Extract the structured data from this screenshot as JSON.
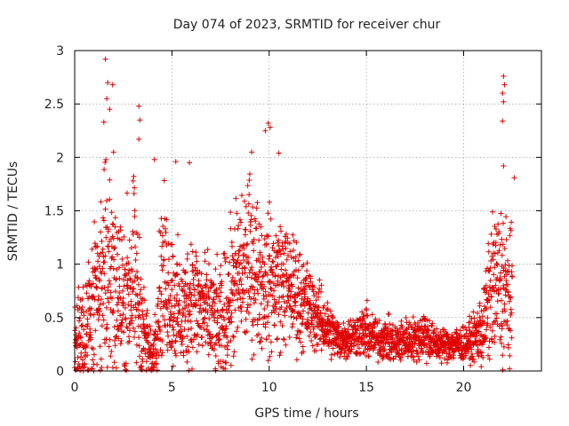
{
  "chart_data": {
    "type": "scatter",
    "title": "Day 074 of 2023, SRMTID for receiver chur",
    "xlabel": "GPS time / hours",
    "ylabel": "SRMTID / TECUs",
    "xlim": [
      0,
      24
    ],
    "ylim": [
      0,
      3
    ],
    "x_ticks": [
      0,
      5,
      10,
      15,
      20
    ],
    "y_ticks": [
      0,
      0.5,
      1,
      1.5,
      2,
      2.5,
      3
    ],
    "x_tick_labels": [
      "0",
      "5",
      "10",
      "15",
      "20"
    ],
    "y_tick_labels": [
      "0",
      "0.5",
      "1",
      "1.5",
      "2",
      "2.5",
      "3"
    ],
    "grid": true,
    "marker": "plus",
    "color": "#e00000",
    "series": [
      {
        "name": "SRMTID",
        "envelope": {
          "hours": [
            0.0,
            0.5,
            1.0,
            1.5,
            2.0,
            2.5,
            3.0,
            3.5,
            4.0,
            4.5,
            5.0,
            5.5,
            6.0,
            6.5,
            7.0,
            7.5,
            8.0,
            8.5,
            9.0,
            9.5,
            10.0,
            10.5,
            11.0,
            11.5,
            12.0,
            12.5,
            13.0,
            13.5,
            14.0,
            14.5,
            15.0,
            15.5,
            16.0,
            16.5,
            17.0,
            17.5,
            18.0,
            18.5,
            19.0,
            19.5,
            20.0,
            20.5,
            21.0,
            21.5,
            22.0,
            22.5
          ],
          "median": [
            0.3,
            0.4,
            0.6,
            0.9,
            0.85,
            0.6,
            0.9,
            0.4,
            0.1,
            0.9,
            0.7,
            0.5,
            0.7,
            0.6,
            0.5,
            0.4,
            0.7,
            0.9,
            1.0,
            0.9,
            0.8,
            0.85,
            0.8,
            0.7,
            0.6,
            0.5,
            0.4,
            0.3,
            0.3,
            0.35,
            0.35,
            0.3,
            0.3,
            0.25,
            0.3,
            0.3,
            0.35,
            0.25,
            0.25,
            0.25,
            0.25,
            0.3,
            0.4,
            0.8,
            0.8,
            0.6
          ],
          "spread": [
            0.3,
            0.4,
            0.6,
            0.8,
            0.8,
            0.6,
            0.7,
            0.4,
            0.1,
            0.6,
            0.5,
            0.4,
            0.5,
            0.4,
            0.4,
            0.4,
            0.5,
            0.6,
            0.6,
            0.5,
            0.5,
            0.5,
            0.4,
            0.4,
            0.3,
            0.25,
            0.2,
            0.15,
            0.15,
            0.15,
            0.2,
            0.15,
            0.15,
            0.15,
            0.15,
            0.15,
            0.2,
            0.12,
            0.12,
            0.12,
            0.12,
            0.15,
            0.3,
            0.5,
            0.6,
            0.5
          ]
        },
        "peaks": [
          {
            "hour": 1.58,
            "value": 2.92
          },
          {
            "hour": 1.7,
            "value": 2.7
          },
          {
            "hour": 1.95,
            "value": 2.68
          },
          {
            "hour": 1.65,
            "value": 2.55
          },
          {
            "hour": 1.8,
            "value": 2.45
          },
          {
            "hour": 1.5,
            "value": 2.33
          },
          {
            "hour": 3.3,
            "value": 2.48
          },
          {
            "hour": 3.35,
            "value": 2.35
          },
          {
            "hour": 3.3,
            "value": 2.17
          },
          {
            "hour": 9.95,
            "value": 2.32
          },
          {
            "hour": 10.05,
            "value": 2.28
          },
          {
            "hour": 9.8,
            "value": 2.25
          },
          {
            "hour": 9.1,
            "value": 2.05
          },
          {
            "hour": 10.5,
            "value": 2.04
          },
          {
            "hour": 22.05,
            "value": 2.76
          },
          {
            "hour": 22.1,
            "value": 2.68
          },
          {
            "hour": 22.0,
            "value": 2.6
          },
          {
            "hour": 22.05,
            "value": 2.52
          },
          {
            "hour": 22.0,
            "value": 2.34
          },
          {
            "hour": 22.05,
            "value": 1.92
          },
          {
            "hour": 22.6,
            "value": 1.81
          },
          {
            "hour": 5.9,
            "value": 1.95
          },
          {
            "hour": 5.2,
            "value": 1.96
          },
          {
            "hour": 2.0,
            "value": 2.05
          },
          {
            "hour": 4.1,
            "value": 1.98
          }
        ]
      }
    ]
  }
}
